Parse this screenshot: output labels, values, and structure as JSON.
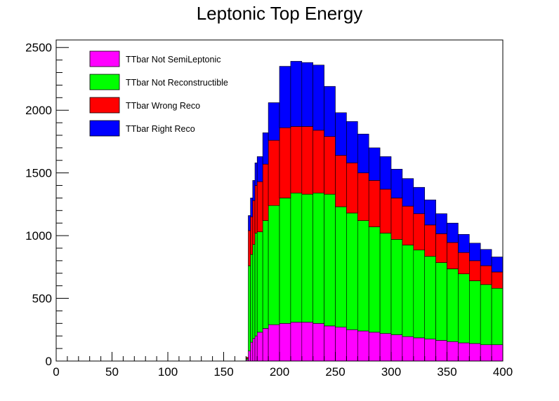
{
  "chart_data": {
    "type": "area",
    "title": "Leptonic Top Energy",
    "xlabel": "",
    "ylabel": "",
    "xlim": [
      0,
      400
    ],
    "ylim": [
      0,
      2560
    ],
    "x_ticks": [
      0,
      50,
      100,
      150,
      200,
      250,
      300,
      350,
      400
    ],
    "y_ticks": [
      0,
      500,
      1000,
      1500,
      2000,
      2500
    ],
    "grid": false,
    "stacked": true,
    "legend_position": "top-left",
    "bin_edges": [
      170,
      172,
      174,
      176,
      178,
      180,
      185,
      190,
      200,
      210,
      220,
      230,
      240,
      250,
      260,
      270,
      280,
      290,
      300,
      310,
      320,
      330,
      340,
      350,
      360,
      370,
      380,
      390,
      400
    ],
    "series": [
      {
        "name": "TTbar Not SemiLeptonic",
        "color": "#ff00ff",
        "values": [
          10,
          80,
          150,
          180,
          200,
          230,
          260,
          290,
          300,
          310,
          310,
          300,
          280,
          270,
          250,
          240,
          230,
          220,
          210,
          195,
          185,
          175,
          165,
          155,
          145,
          140,
          130,
          130
        ]
      },
      {
        "name": "TTbar Not Reconstructible",
        "color": "#00ff00",
        "values": [
          10,
          680,
          700,
          750,
          820,
          800,
          860,
          950,
          1000,
          1030,
          1020,
          1040,
          1050,
          960,
          930,
          880,
          840,
          800,
          760,
          730,
          700,
          660,
          620,
          580,
          550,
          500,
          480,
          450
        ]
      },
      {
        "name": "TTbar Wrong Reco",
        "color": "#ff0000",
        "values": [
          10,
          280,
          300,
          350,
          380,
          400,
          450,
          520,
          560,
          530,
          540,
          500,
          460,
          410,
          400,
          380,
          370,
          350,
          330,
          310,
          290,
          250,
          230,
          210,
          170,
          160,
          150,
          130
        ]
      },
      {
        "name": "TTbar Right Reco",
        "color": "#0000ff",
        "values": [
          0,
          120,
          150,
          160,
          180,
          200,
          250,
          300,
          490,
          520,
          510,
          520,
          400,
          340,
          330,
          310,
          260,
          260,
          230,
          220,
          210,
          200,
          160,
          155,
          145,
          140,
          130,
          120
        ]
      }
    ]
  }
}
